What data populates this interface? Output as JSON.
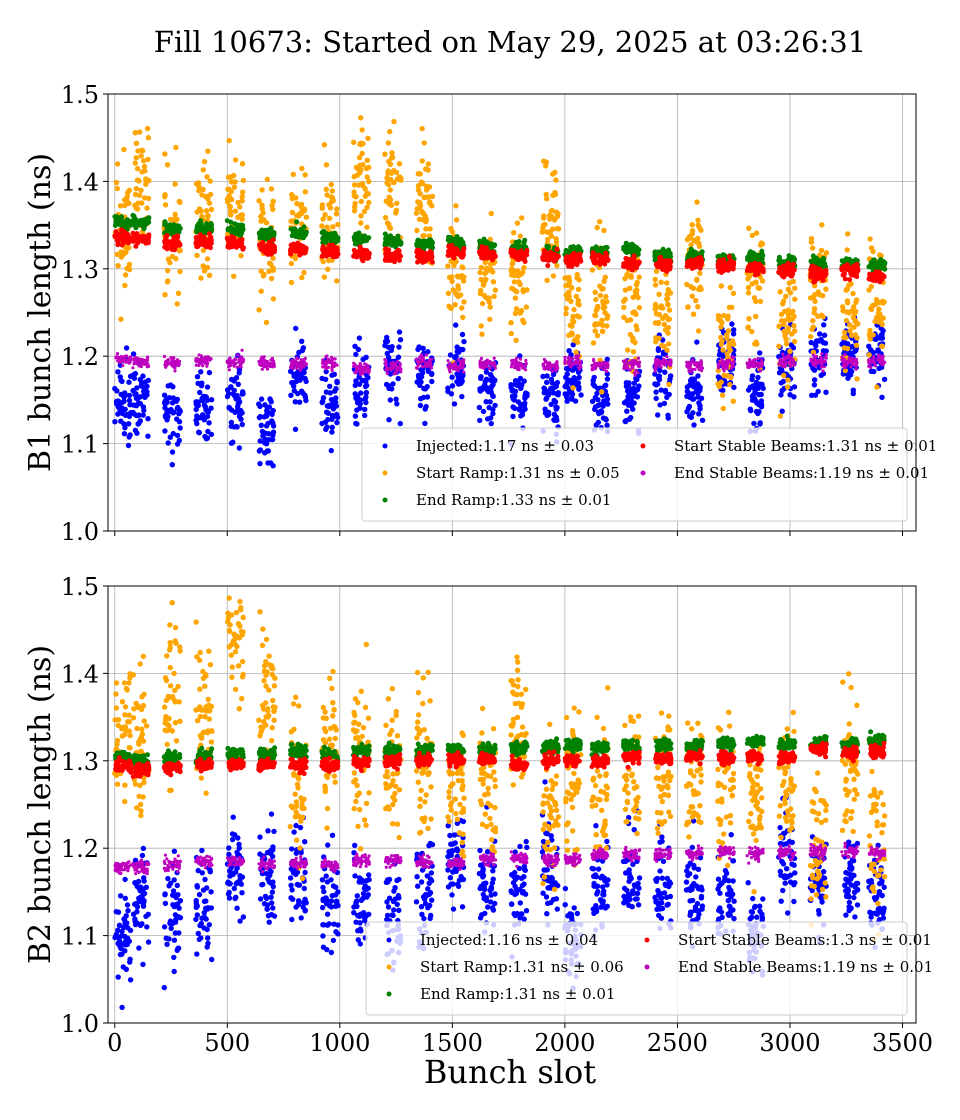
{
  "figure_title": "Fill 10673: Started on May 29, 2025 at 03:26:31",
  "x_axis_label": "Bunch slot",
  "chart_data": [
    {
      "type": "scatter",
      "title": "",
      "xlabel": "",
      "ylabel": "B1 bunch length (ns)",
      "xlim": [
        -30,
        3560
      ],
      "ylim": [
        1.0,
        1.5
      ],
      "x_ticks": [
        0,
        500,
        1000,
        1500,
        2000,
        2500,
        3000,
        3500
      ],
      "y_ticks": [
        "1.0",
        "1.1",
        "1.2",
        "1.3",
        "1.4",
        "1.5"
      ],
      "grid": true,
      "legend_position": "lower-right",
      "train_starts": [
        0,
        80,
        220,
        360,
        500,
        640,
        780,
        920,
        1060,
        1200,
        1340,
        1480,
        1620,
        1760,
        1900,
        2000,
        2120,
        2260,
        2400,
        2540,
        2680,
        2810,
        2950,
        3090,
        3230,
        3350
      ],
      "series": [
        {
          "name": "Injected",
          "label": "Injected:1.17 ns ± 0.03",
          "color": "#0000ff",
          "mean": 1.17,
          "std": 0.03,
          "trend": [
            [
              0,
              1.14
            ],
            [
              700,
              1.14
            ],
            [
              1400,
              1.17
            ],
            [
              2000,
              1.17
            ],
            [
              2200,
              1.15
            ],
            [
              2600,
              1.18
            ],
            [
              3420,
              1.19
            ]
          ]
        },
        {
          "name": "Start Ramp",
          "label": "Start Ramp:1.31 ns ± 0.05",
          "color": "#ffa500",
          "mean": 1.31,
          "std": 0.05,
          "trend": [
            [
              0,
              1.38
            ],
            [
              500,
              1.37
            ],
            [
              1000,
              1.36
            ],
            [
              1500,
              1.34
            ],
            [
              1950,
              1.32
            ],
            [
              2050,
              1.27
            ],
            [
              2600,
              1.27
            ],
            [
              3000,
              1.26
            ],
            [
              3420,
              1.23
            ]
          ]
        },
        {
          "name": "End Ramp",
          "label": "End Ramp:1.33 ns ± 0.01",
          "color": "#008000",
          "mean": 1.33,
          "std": 0.01,
          "trend": [
            [
              0,
              1.355
            ],
            [
              1000,
              1.335
            ],
            [
              2000,
              1.32
            ],
            [
              3420,
              1.305
            ]
          ]
        },
        {
          "name": "Start Stable Beams",
          "label": "Start Stable Beams:1.31 ns ± 0.01",
          "color": "#ff0000",
          "mean": 1.31,
          "std": 0.01,
          "trend": [
            [
              0,
              1.335
            ],
            [
              1000,
              1.32
            ],
            [
              2000,
              1.31
            ],
            [
              3420,
              1.295
            ]
          ]
        },
        {
          "name": "End Stable Beams",
          "label": "End Stable Beams:1.19 ns ± 0.01",
          "color": "#bf00bf",
          "mean": 1.19,
          "std": 0.01,
          "trend": [
            [
              0,
              1.195
            ],
            [
              1500,
              1.19
            ],
            [
              2500,
              1.19
            ],
            [
              3420,
              1.195
            ]
          ]
        }
      ]
    },
    {
      "type": "scatter",
      "title": "",
      "xlabel": "Bunch slot",
      "ylabel": "B2 bunch length (ns)",
      "xlim": [
        -30,
        3560
      ],
      "ylim": [
        1.0,
        1.5
      ],
      "x_ticks": [
        0,
        500,
        1000,
        1500,
        2000,
        2500,
        3000,
        3500
      ],
      "y_ticks": [
        "1.0",
        "1.1",
        "1.2",
        "1.3",
        "1.4",
        "1.5"
      ],
      "grid": true,
      "legend_position": "lower-right",
      "train_starts": [
        0,
        80,
        220,
        360,
        500,
        640,
        780,
        920,
        1060,
        1200,
        1340,
        1480,
        1620,
        1760,
        1900,
        2000,
        2120,
        2260,
        2400,
        2540,
        2680,
        2810,
        2950,
        3090,
        3230,
        3350
      ],
      "series": [
        {
          "name": "Injected",
          "label": "Injected:1.16 ns ± 0.04",
          "color": "#0000ff",
          "mean": 1.16,
          "std": 0.04,
          "trend": [
            [
              0,
              1.15
            ],
            [
              1000,
              1.15
            ],
            [
              2000,
              1.15
            ],
            [
              2600,
              1.15
            ],
            [
              3420,
              1.17
            ]
          ]
        },
        {
          "name": "Start Ramp",
          "label": "Start Ramp:1.31 ns ± 0.06",
          "color": "#ffa500",
          "mean": 1.31,
          "std": 0.06,
          "trend": [
            [
              0,
              1.34
            ],
            [
              300,
              1.4
            ],
            [
              700,
              1.37
            ],
            [
              1000,
              1.34
            ],
            [
              1500,
              1.33
            ],
            [
              1700,
              1.3
            ],
            [
              2000,
              1.27
            ],
            [
              2500,
              1.26
            ],
            [
              3420,
              1.24
            ]
          ]
        },
        {
          "name": "End Ramp",
          "label": "End Ramp:1.31 ns ± 0.01",
          "color": "#008000",
          "mean": 1.31,
          "std": 0.01,
          "trend": [
            [
              0,
              1.302
            ],
            [
              1000,
              1.31
            ],
            [
              2000,
              1.315
            ],
            [
              3420,
              1.322
            ]
          ]
        },
        {
          "name": "Start Stable Beams",
          "label": "Start Stable Beams:1.3 ns ± 0.01",
          "color": "#ff0000",
          "mean": 1.3,
          "std": 0.01,
          "trend": [
            [
              0,
              1.29
            ],
            [
              1000,
              1.297
            ],
            [
              2000,
              1.3
            ],
            [
              3420,
              1.31
            ]
          ]
        },
        {
          "name": "End Stable Beams",
          "label": "End Stable Beams:1.19 ns ± 0.01",
          "color": "#bf00bf",
          "mean": 1.19,
          "std": 0.01,
          "trend": [
            [
              0,
              1.18
            ],
            [
              1500,
              1.185
            ],
            [
              2500,
              1.195
            ],
            [
              3420,
              1.195
            ]
          ]
        }
      ]
    }
  ]
}
